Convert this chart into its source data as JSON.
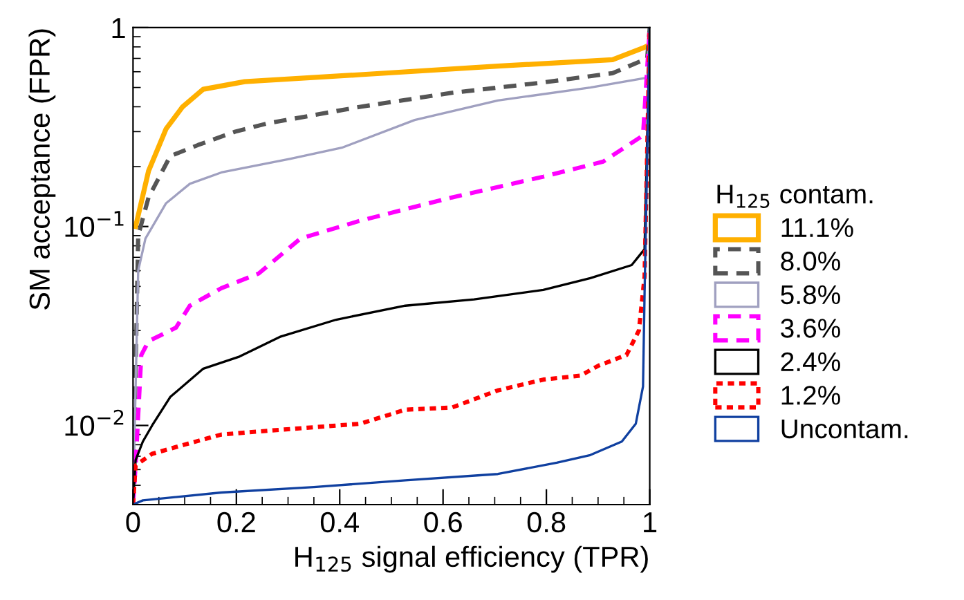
{
  "chart_data": {
    "type": "line",
    "xlabel": "H$_{125}$ signal efficiency (TPR)",
    "ylabel": "SM acceptance (FPR)",
    "legend_title": "H$_{125}$ contam.",
    "legend": "right",
    "log": "y",
    "grid": false,
    "marker": "none",
    "xlim": [
      0,
      1
    ],
    "xticks": [
      0,
      0.2,
      0.4,
      0.6,
      0.8,
      1
    ],
    "ylim": [
      0.004,
      1
    ],
    "yticks": [
      1,
      {
        "value": 0.1,
        "label": "10$^{−1}$"
      },
      {
        "value": 0.01,
        "label": "10$^{−2}$"
      }
    ],
    "series": [
      {
        "name": "11.1%",
        "color": "#ffb000",
        "line_style": "solid",
        "x": [
          0.005,
          0.03,
          0.064,
          0.096,
          0.136,
          0.216,
          0.44,
          0.706,
          0.928,
          0.987,
          1
        ],
        "values": [
          0.1,
          0.19,
          0.31,
          0.4,
          0.49,
          0.535,
          0.58,
          0.64,
          0.69,
          0.79,
          0.82
        ]
      },
      {
        "name": "8.0%",
        "color": "#555555",
        "line_style": "dashed",
        "x": [
          0,
          0.01,
          0.03,
          0.072,
          0.126,
          0.198,
          0.26,
          0.44,
          0.617,
          0.794,
          0.928,
          0.995,
          1
        ],
        "values": [
          0.004,
          0.09,
          0.14,
          0.226,
          0.257,
          0.3,
          0.33,
          0.4,
          0.47,
          0.53,
          0.59,
          0.7,
          1
        ]
      },
      {
        "name": "5.8%",
        "color": "#a0a0c0",
        "line_style": "solid",
        "x": [
          0,
          0.01,
          0.024,
          0.064,
          0.11,
          0.171,
          0.305,
          0.404,
          0.545,
          0.706,
          0.885,
          0.995,
          1
        ],
        "values": [
          0.004,
          0.06,
          0.087,
          0.131,
          0.164,
          0.187,
          0.219,
          0.249,
          0.343,
          0.43,
          0.5,
          0.56,
          1
        ]
      },
      {
        "name": "3.6%",
        "color": "#ff00ff",
        "line_style": "dashed",
        "x": [
          0,
          0.005,
          0.016,
          0.03,
          0.083,
          0.11,
          0.171,
          0.243,
          0.324,
          0.44,
          0.617,
          0.794,
          0.91,
          0.987,
          1
        ],
        "values": [
          0.004,
          0.0063,
          0.0226,
          0.0265,
          0.031,
          0.04,
          0.049,
          0.058,
          0.087,
          0.107,
          0.14,
          0.178,
          0.212,
          0.287,
          1
        ]
      },
      {
        "name": "2.4%",
        "color": "#000000",
        "line_style": "solid",
        "x": [
          0,
          0.005,
          0.019,
          0.037,
          0.072,
          0.136,
          0.206,
          0.286,
          0.393,
          0.527,
          0.66,
          0.794,
          0.885,
          0.965,
          0.99,
          1
        ],
        "values": [
          0.004,
          0.0067,
          0.0083,
          0.01,
          0.0139,
          0.0193,
          0.0222,
          0.028,
          0.034,
          0.04,
          0.043,
          0.048,
          0.055,
          0.064,
          0.077,
          1
        ]
      },
      {
        "name": "1.2%",
        "color": "#ff0000",
        "line_style": "dotted",
        "x": [
          0,
          0.005,
          0.037,
          0.099,
          0.171,
          0.26,
          0.44,
          0.527,
          0.617,
          0.706,
          0.794,
          0.866,
          0.901,
          0.955,
          0.979,
          0.99,
          1
        ],
        "values": [
          0.004,
          0.0063,
          0.0072,
          0.008,
          0.009,
          0.0094,
          0.0102,
          0.012,
          0.0123,
          0.015,
          0.017,
          0.0178,
          0.02,
          0.0226,
          0.03,
          0.056,
          1
        ]
      },
      {
        "name": "Uncontam.",
        "color": "#1040a0",
        "line_style": "solid",
        "x": [
          0,
          0.019,
          0.171,
          0.35,
          0.527,
          0.706,
          0.82,
          0.885,
          0.946,
          0.973,
          0.987,
          0.99,
          1
        ],
        "values": [
          0.004,
          0.0042,
          0.0046,
          0.0049,
          0.0053,
          0.0057,
          0.0065,
          0.0071,
          0.0083,
          0.0102,
          0.0157,
          0.046,
          1
        ]
      }
    ]
  }
}
